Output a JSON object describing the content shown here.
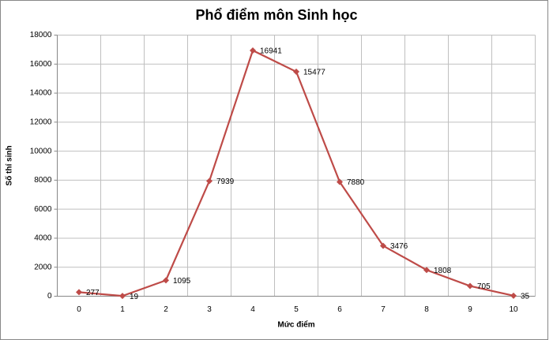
{
  "chart_data": {
    "type": "line",
    "title": "Phổ điểm môn Sinh học",
    "x_label": "Mức điểm",
    "y_label": "Số thí sinh",
    "categories": [
      0,
      1,
      2,
      3,
      4,
      5,
      6,
      7,
      8,
      9,
      10
    ],
    "series": [
      {
        "color": "#be4b48",
        "values": [
          277,
          19,
          1095,
          7939,
          16941,
          15477,
          7880,
          3476,
          1808,
          705,
          35
        ]
      }
    ],
    "ylim": [
      0,
      18000
    ],
    "yticks": [
      0,
      2000,
      4000,
      6000,
      8000,
      10000,
      12000,
      14000,
      16000,
      18000
    ],
    "grid": true,
    "data_labels": true
  }
}
